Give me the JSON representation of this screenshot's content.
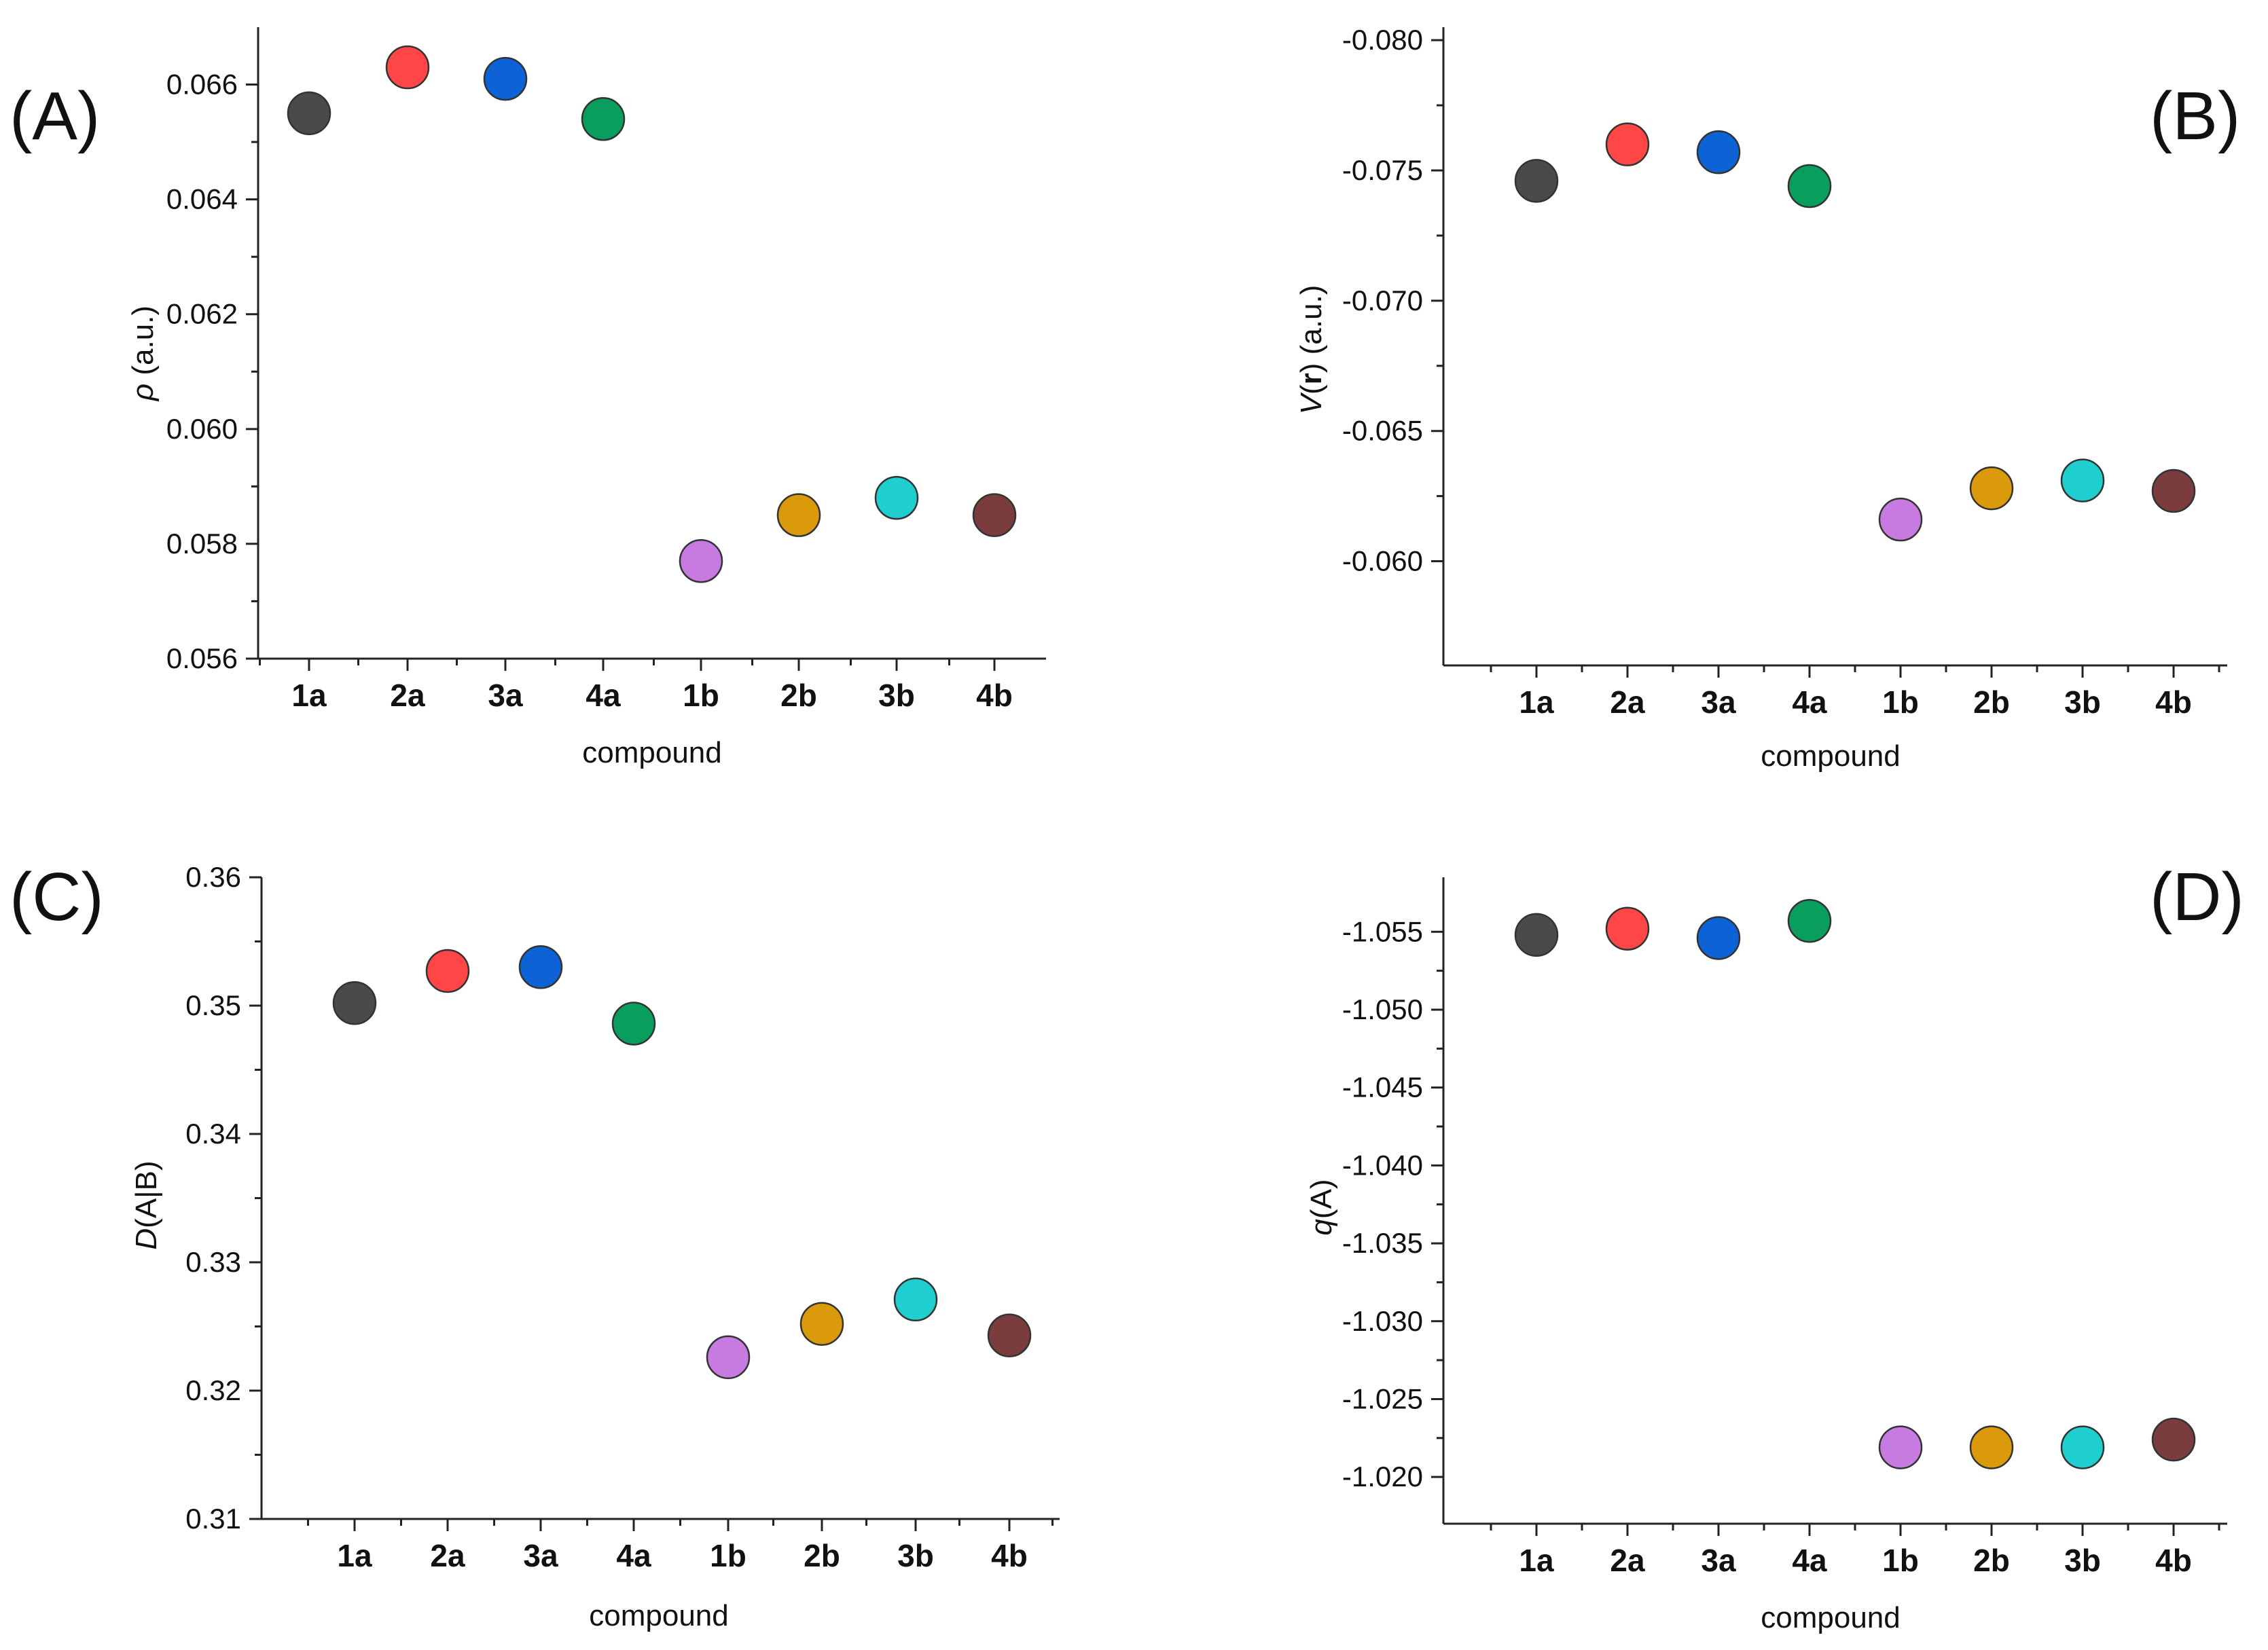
{
  "figure": {
    "x_label": "compound",
    "marker_colors": [
      "#4a4a4a",
      "#ff4646",
      "#0d62d6",
      "#0a9e5e",
      "#c77ae0",
      "#db9a0b",
      "#1fcfcf",
      "#7a3c3c"
    ]
  },
  "chart_data": [
    {
      "type": "scatter",
      "panel_label": "(A)",
      "ylabel": "ρ (a.u.)",
      "ylabel_symbol": "ρ",
      "ylabel_rest": " (a.u.)",
      "xlabel": "compound",
      "categories": [
        "1a",
        "2a",
        "3a",
        "4a",
        "1b",
        "2b",
        "3b",
        "4b"
      ],
      "values": [
        0.0655,
        0.0663,
        0.0661,
        0.0654,
        0.0577,
        0.0585,
        0.0588,
        0.0585
      ],
      "ylim": [
        0.056,
        0.067
      ],
      "yticks": [
        0.056,
        0.058,
        0.06,
        0.062,
        0.064,
        0.066
      ],
      "ytick_labels": [
        "0.056",
        "0.058",
        "0.060",
        "0.062",
        "0.064",
        "0.066"
      ],
      "reversed": false
    },
    {
      "type": "scatter",
      "panel_label": "(B)",
      "ylabel": "V(r) (a.u.)",
      "ylabel_symbol": "V",
      "ylabel_rest_a": "(",
      "ylabel_bold": "r",
      "ylabel_rest_b": ") (a.u.)",
      "xlabel": "compound",
      "categories": [
        "1a",
        "2a",
        "3a",
        "4a",
        "1b",
        "2b",
        "3b",
        "4b"
      ],
      "values": [
        -0.0746,
        -0.076,
        -0.0757,
        -0.0744,
        -0.0616,
        -0.0628,
        -0.0631,
        -0.0627
      ],
      "ylim": [
        -0.056,
        -0.0805
      ],
      "yticks": [
        -0.06,
        -0.065,
        -0.07,
        -0.075,
        -0.08
      ],
      "ytick_labels": [
        "-0.060",
        "-0.065",
        "-0.070",
        "-0.075",
        "-0.080"
      ],
      "reversed": true
    },
    {
      "type": "scatter",
      "panel_label": "(C)",
      "ylabel": "D(A|B)",
      "ylabel_symbol": "D",
      "ylabel_rest": "(A|B)",
      "xlabel": "compound",
      "categories": [
        "1a",
        "2a",
        "3a",
        "4a",
        "1b",
        "2b",
        "3b",
        "4b"
      ],
      "values": [
        0.3502,
        0.3527,
        0.353,
        0.3486,
        0.3226,
        0.3252,
        0.3271,
        0.3243
      ],
      "ylim": [
        0.31,
        0.36
      ],
      "yticks": [
        0.31,
        0.32,
        0.33,
        0.34,
        0.35,
        0.36
      ],
      "ytick_labels": [
        "0.31",
        "0.32",
        "0.33",
        "0.34",
        "0.35",
        "0.36"
      ],
      "reversed": false
    },
    {
      "type": "scatter",
      "panel_label": "(D)",
      "ylabel": "q(A)",
      "ylabel_symbol": "q",
      "ylabel_rest": "(A)",
      "xlabel": "compound",
      "categories": [
        "1a",
        "2a",
        "3a",
        "4a",
        "1b",
        "2b",
        "3b",
        "4b"
      ],
      "values": [
        -1.0548,
        -1.0552,
        -1.0546,
        -1.0557,
        -1.0219,
        -1.0219,
        -1.0219,
        -1.0224
      ],
      "ylim": [
        -1.017,
        -1.0585
      ],
      "yticks": [
        -1.02,
        -1.025,
        -1.03,
        -1.035,
        -1.04,
        -1.045,
        -1.05,
        -1.055
      ],
      "ytick_labels": [
        "-1.020",
        "-1.025",
        "-1.030",
        "-1.035",
        "-1.040",
        "-1.045",
        "-1.050",
        "-1.055"
      ],
      "reversed": true
    }
  ]
}
